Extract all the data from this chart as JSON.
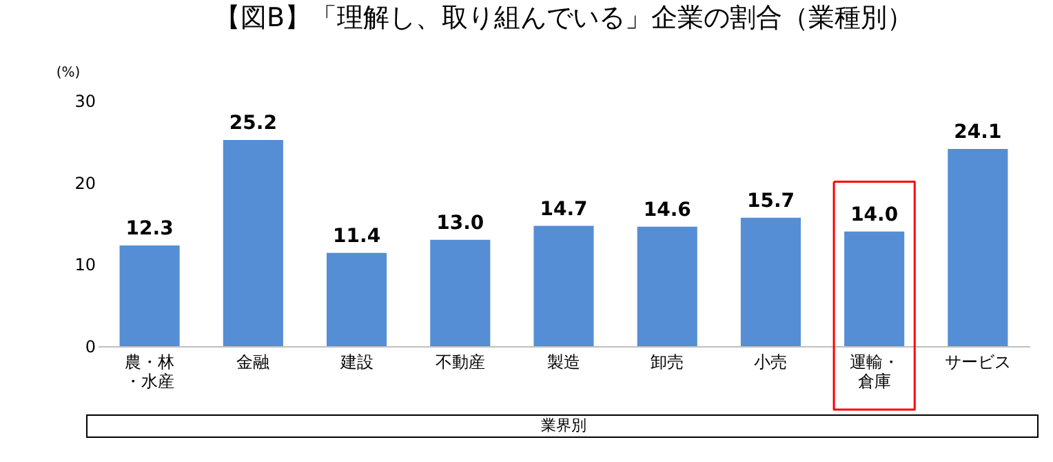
{
  "chart_data": {
    "type": "bar",
    "title": "【図B】「理解し、取り組んでいる」企業の割合（業種別）",
    "ylabel": "(%)",
    "xlabel": "業界別",
    "categories": [
      "農・林・水産",
      "金融",
      "建設",
      "不動産",
      "製造",
      "卸売",
      "小売",
      "運輸・倉庫",
      "サービス"
    ],
    "values": [
      12.3,
      25.2,
      11.4,
      13.0,
      14.7,
      14.6,
      15.7,
      14.0,
      24.1
    ],
    "value_labels": [
      "12.3",
      "25.2",
      "11.4",
      "13.0",
      "14.7",
      "14.6",
      "15.7",
      "14.0",
      "24.1"
    ],
    "color": "#558ed5",
    "ylim": [
      0,
      30
    ],
    "yticks": [
      0,
      10,
      20,
      30
    ],
    "grid": false
  }
}
